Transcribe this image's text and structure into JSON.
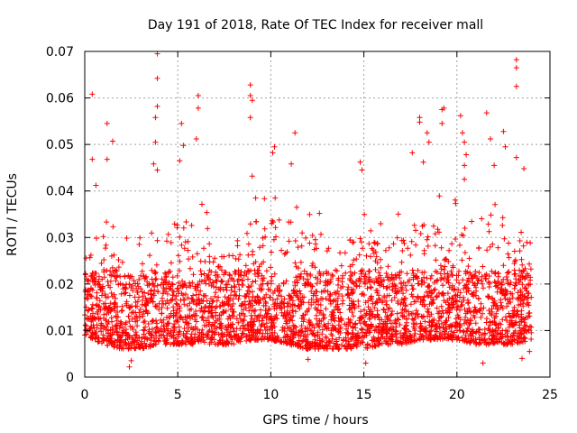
{
  "chart_data": {
    "type": "scatter",
    "title": "Day 191 of 2018, Rate Of TEC Index for receiver mall",
    "xlabel": "GPS time / hours",
    "ylabel": "ROTI / TECUs",
    "xlim": [
      0,
      25
    ],
    "ylim": [
      0,
      0.07
    ],
    "xticks": [
      0,
      5,
      10,
      15,
      20,
      25
    ],
    "xtick_labels": [
      "0",
      "5",
      "10",
      "15",
      "20",
      "25"
    ],
    "yticks": [
      0,
      0.01,
      0.02,
      0.03,
      0.04,
      0.05,
      0.06,
      0.07
    ],
    "ytick_labels": [
      "0",
      "0.01",
      "0.02",
      "0.03",
      "0.04",
      "0.05",
      "0.06",
      "0.07"
    ],
    "grid": true,
    "marker": "+",
    "color": "#ff0000",
    "series": [
      {
        "name": "ROTI",
        "x_range": [
          0,
          24
        ],
        "points": [
          {
            "x": 0.4,
            "y": 0.0608
          },
          {
            "x": 0.4,
            "y": 0.0468
          },
          {
            "x": 0.6,
            "y": 0.0412
          },
          {
            "x": 1.2,
            "y": 0.0545
          },
          {
            "x": 1.2,
            "y": 0.0468
          },
          {
            "x": 1.5,
            "y": 0.0507
          },
          {
            "x": 2.4,
            "y": 0.0022
          },
          {
            "x": 2.5,
            "y": 0.0035
          },
          {
            "x": 3.9,
            "y": 0.0695
          },
          {
            "x": 3.9,
            "y": 0.0642
          },
          {
            "x": 3.9,
            "y": 0.0582
          },
          {
            "x": 3.8,
            "y": 0.0558
          },
          {
            "x": 3.8,
            "y": 0.0505
          },
          {
            "x": 3.7,
            "y": 0.0458
          },
          {
            "x": 3.9,
            "y": 0.0445
          },
          {
            "x": 5.2,
            "y": 0.0545
          },
          {
            "x": 5.3,
            "y": 0.0498
          },
          {
            "x": 5.1,
            "y": 0.0465
          },
          {
            "x": 6.1,
            "y": 0.0605
          },
          {
            "x": 6.1,
            "y": 0.0578
          },
          {
            "x": 6.0,
            "y": 0.0512
          },
          {
            "x": 8.9,
            "y": 0.0628
          },
          {
            "x": 8.9,
            "y": 0.0605
          },
          {
            "x": 9.0,
            "y": 0.0595
          },
          {
            "x": 8.9,
            "y": 0.0558
          },
          {
            "x": 9.0,
            "y": 0.0432
          },
          {
            "x": 10.2,
            "y": 0.0495
          },
          {
            "x": 10.1,
            "y": 0.0482
          },
          {
            "x": 11.3,
            "y": 0.0525
          },
          {
            "x": 11.1,
            "y": 0.0458
          },
          {
            "x": 14.8,
            "y": 0.0462
          },
          {
            "x": 14.9,
            "y": 0.0445
          },
          {
            "x": 15.1,
            "y": 0.003
          },
          {
            "x": 12.0,
            "y": 0.0038
          },
          {
            "x": 18.0,
            "y": 0.0558
          },
          {
            "x": 18.0,
            "y": 0.0548
          },
          {
            "x": 18.4,
            "y": 0.0525
          },
          {
            "x": 18.5,
            "y": 0.0505
          },
          {
            "x": 17.6,
            "y": 0.0482
          },
          {
            "x": 18.2,
            "y": 0.0462
          },
          {
            "x": 19.3,
            "y": 0.0578
          },
          {
            "x": 19.2,
            "y": 0.0575
          },
          {
            "x": 19.2,
            "y": 0.0545
          },
          {
            "x": 20.2,
            "y": 0.0562
          },
          {
            "x": 20.3,
            "y": 0.0525
          },
          {
            "x": 20.4,
            "y": 0.0505
          },
          {
            "x": 20.5,
            "y": 0.0478
          },
          {
            "x": 20.4,
            "y": 0.0455
          },
          {
            "x": 20.4,
            "y": 0.0425
          },
          {
            "x": 21.4,
            "y": 0.003
          },
          {
            "x": 21.6,
            "y": 0.0568
          },
          {
            "x": 21.8,
            "y": 0.0512
          },
          {
            "x": 22.0,
            "y": 0.0455
          },
          {
            "x": 22.5,
            "y": 0.0528
          },
          {
            "x": 22.6,
            "y": 0.0495
          },
          {
            "x": 23.2,
            "y": 0.0682
          },
          {
            "x": 23.2,
            "y": 0.0665
          },
          {
            "x": 23.2,
            "y": 0.0625
          },
          {
            "x": 23.2,
            "y": 0.0472
          },
          {
            "x": 23.6,
            "y": 0.0448
          },
          {
            "x": 23.9,
            "y": 0.0055
          },
          {
            "x": 23.5,
            "y": 0.004
          }
        ],
        "envelope": {
          "hours": [
            0,
            1,
            2,
            3,
            4,
            5,
            6,
            7,
            8,
            9,
            10,
            11,
            12,
            13,
            14,
            15,
            16,
            17,
            18,
            19,
            20,
            21,
            22,
            23,
            24
          ],
          "baseline": [
            0.009,
            0.007,
            0.006,
            0.006,
            0.007,
            0.007,
            0.007,
            0.007,
            0.007,
            0.008,
            0.008,
            0.007,
            0.006,
            0.006,
            0.006,
            0.006,
            0.007,
            0.007,
            0.008,
            0.008,
            0.008,
            0.007,
            0.007,
            0.007,
            0.008
          ],
          "upper": [
            0.03,
            0.036,
            0.03,
            0.03,
            0.037,
            0.04,
            0.04,
            0.032,
            0.033,
            0.041,
            0.04,
            0.041,
            0.037,
            0.036,
            0.035,
            0.038,
            0.038,
            0.036,
            0.04,
            0.04,
            0.04,
            0.04,
            0.043,
            0.04,
            0.036
          ]
        }
      }
    ]
  }
}
